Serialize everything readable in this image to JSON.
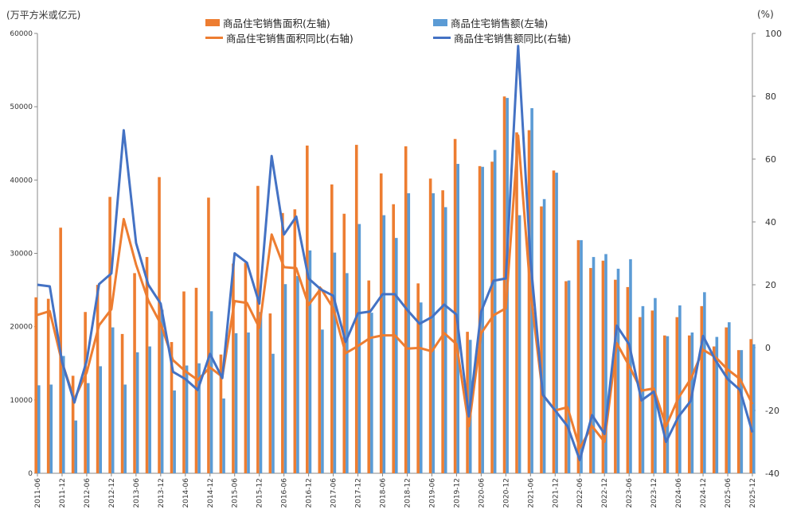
{
  "chart_data": {
    "type": "bar+line",
    "left_unit": "(万平方米或亿元)",
    "right_unit": "(%)",
    "y_left_range": [
      0,
      60000
    ],
    "y_left_ticks": [
      "0",
      "10000",
      "20000",
      "30000",
      "40000",
      "50000",
      "60000"
    ],
    "y_right_range": [
      -40,
      100
    ],
    "y_right_ticks": [
      "-40",
      "-20",
      "0",
      "20",
      "40",
      "60",
      "80",
      "100"
    ],
    "legend": {
      "area_bar": "商品住宅销售面积(左轴)",
      "amount_bar": "商品住宅销售额(左轴)",
      "area_yoy": "商品住宅销售面积同比(右轴)",
      "amount_yoy": "商品住宅销售额同比(右轴)"
    },
    "colors": {
      "orange": "#ED7D31",
      "blue": "#5B9BD5",
      "line_blue": "#4472C4"
    },
    "x_tick_labels": [
      "2011-06",
      "2011-12",
      "2012-06",
      "2012-12",
      "2013-06",
      "2013-12",
      "2014-06",
      "2014-12",
      "2015-06",
      "2015-12",
      "2016-06",
      "2016-12",
      "2017-06",
      "2017-12",
      "2018-06",
      "2018-12",
      "2019-06",
      "2019-12",
      "2020-06",
      "2020-12",
      "2021-06",
      "2021-12",
      "2022-06",
      "2022-12",
      "2023-06",
      "2023-12",
      "2024-06",
      "2024-12",
      "2025-06",
      "2025-12"
    ],
    "periods": [
      "2011-06",
      "2011-09",
      "2011-12",
      "2012-03",
      "2012-06",
      "2012-09",
      "2012-12",
      "2013-03",
      "2013-06",
      "2013-09",
      "2013-12",
      "2014-03",
      "2014-06",
      "2014-09",
      "2014-12",
      "2015-03",
      "2015-06",
      "2015-09",
      "2015-12",
      "2016-03",
      "2016-06",
      "2016-09",
      "2016-12",
      "2017-03",
      "2017-06",
      "2017-09",
      "2017-12",
      "2018-03",
      "2018-06",
      "2018-09",
      "2018-12",
      "2019-03",
      "2019-06",
      "2019-09",
      "2019-12",
      "2020-03",
      "2020-06",
      "2020-09",
      "2020-12",
      "2021-03",
      "2021-06",
      "2021-09",
      "2021-12",
      "2022-03",
      "2022-06",
      "2022-09",
      "2022-12",
      "2023-03",
      "2023-06",
      "2023-09",
      "2023-12",
      "2024-03",
      "2024-06",
      "2024-09",
      "2024-12",
      "2025-03",
      "2025-06",
      "2025-09",
      "2025-12"
    ],
    "area": [
      24000,
      23800,
      33500,
      13300,
      22000,
      25700,
      37700,
      19000,
      27300,
      29500,
      40400,
      17900,
      24800,
      25300,
      37600,
      16200,
      28600,
      28700,
      39200,
      21800,
      35500,
      36000,
      44700,
      25500,
      39400,
      35400,
      44800,
      26300,
      40900,
      36700,
      44600,
      25900,
      40200,
      38600,
      45600,
      19300,
      41900,
      42500,
      51400,
      46500,
      46800,
      36400,
      41300,
      26200,
      31800,
      28000,
      29000,
      26400,
      25400,
      21300,
      22200,
      18800,
      21300,
      18800,
      22800,
      17300,
      19900,
      16800,
      18300
    ],
    "amount": [
      12000,
      12100,
      16000,
      7200,
      12300,
      14600,
      19900,
      12100,
      16500,
      17300,
      22300,
      11300,
      14700,
      15000,
      22100,
      10200,
      19100,
      19200,
      22000,
      16300,
      25800,
      26900,
      30400,
      19600,
      30100,
      27300,
      34000,
      21900,
      35200,
      32100,
      38200,
      23300,
      38200,
      36300,
      42200,
      18200,
      41800,
      44100,
      51200,
      35200,
      49800,
      37400,
      41000,
      26300,
      31800,
      29500,
      29900,
      27900,
      29200,
      22800,
      23900,
      18700,
      22900,
      19200,
      24700,
      18600,
      20600,
      16800,
      17600
    ],
    "area_yoy": [
      10.4,
      11.6,
      -4.8,
      -16.4,
      -7.9,
      7.1,
      12.2,
      40.9,
      26.4,
      15.0,
      7.6,
      -4.0,
      -7.5,
      -10.3,
      -6.3,
      -9.3,
      14.8,
      14.2,
      6.3,
      36.0,
      25.6,
      25.3,
      13.6,
      18.8,
      12.5,
      -1.8,
      0.5,
      3.1,
      3.9,
      3.9,
      -0.3,
      -0.1,
      -1.2,
      4.6,
      1.1,
      -25.0,
      4.6,
      10.3,
      12.5,
      67.5,
      17.8,
      -15.1,
      -20.0,
      -19.0,
      -32.0,
      -25.0,
      -30.0,
      1.4,
      -5.8,
      -13.7,
      -13.0,
      -25.0,
      -16.0,
      -10.0,
      -0.7,
      -3.0,
      -7.0,
      -10.0,
      -18.0
    ],
    "amount_yoy": [
      20.0,
      19.5,
      -4.6,
      -17.5,
      -4.2,
      20.2,
      23.6,
      69.2,
      33.3,
      20.0,
      14.0,
      -7.7,
      -10.0,
      -13.5,
      -2.0,
      -9.7,
      30.0,
      27.0,
      14.0,
      61.0,
      36.0,
      41.7,
      22.0,
      18.5,
      16.5,
      1.8,
      10.9,
      11.5,
      17.0,
      17.0,
      12.0,
      7.6,
      9.7,
      13.7,
      10.5,
      -21.9,
      11.5,
      21.3,
      22.0,
      96.0,
      28.0,
      -15.0,
      -20.0,
      -25.0,
      -35.8,
      -21.5,
      -27.5,
      7.0,
      1.0,
      -16.8,
      -14.0,
      -30.0,
      -22.0,
      -17.0,
      3.7,
      -4.0,
      -10.0,
      -13.5,
      -27.0
    ]
  }
}
